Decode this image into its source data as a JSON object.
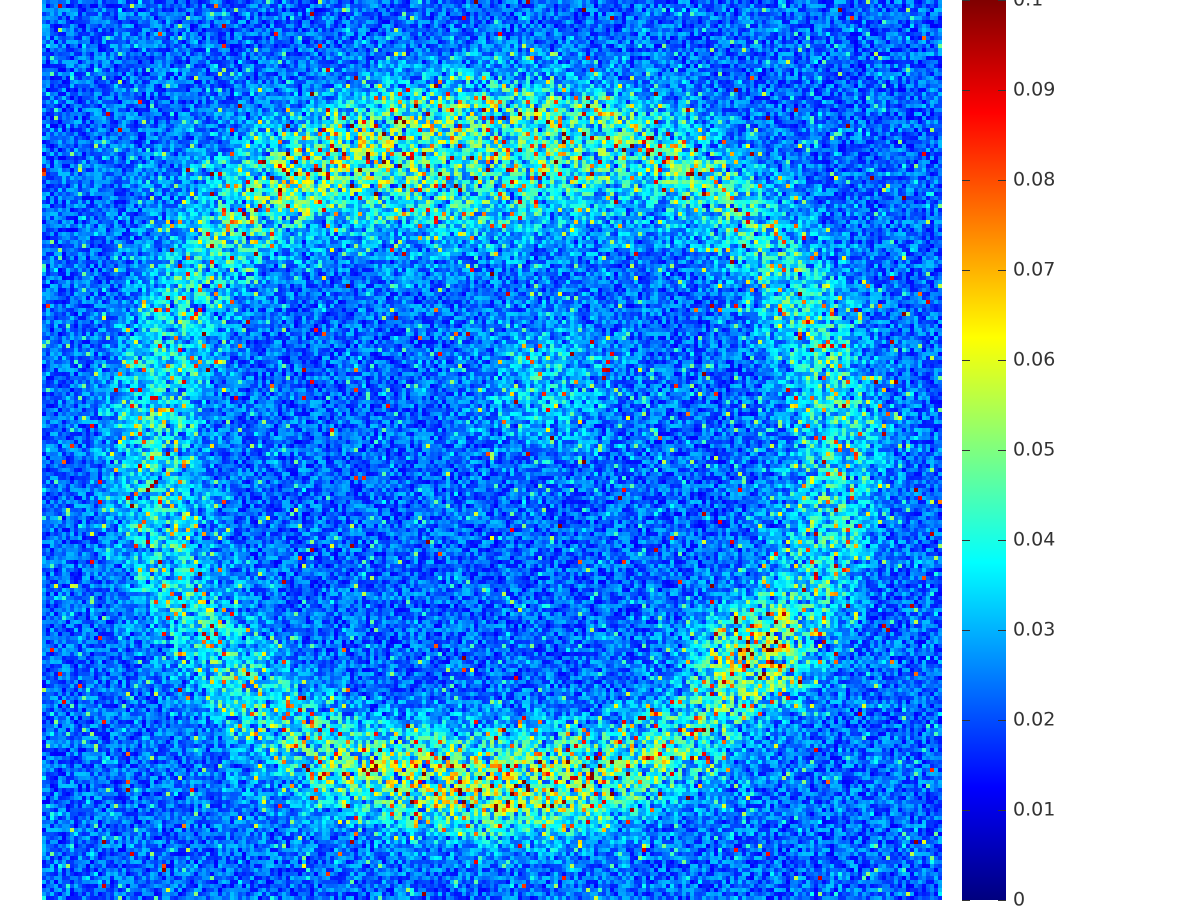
{
  "chart_data": {
    "type": "heatmap",
    "title": "",
    "xlabel": "",
    "ylabel": "",
    "grid": false,
    "colormap": "jet",
    "color_range": [
      0,
      0.1
    ],
    "grid_resolution": [
      225,
      225
    ],
    "value_distribution": {
      "background_typical": 0.02,
      "hotspot_max": 0.1,
      "high_value_regions": [
        "upper arc",
        "left arc",
        "lower arc",
        "right-center cluster",
        "lower-right cluster"
      ]
    },
    "colorbar": {
      "ticks": [
        0,
        0.01,
        0.02,
        0.03,
        0.04,
        0.05,
        0.06,
        0.07,
        0.08,
        0.09,
        0.1
      ],
      "tick_labels": [
        "0",
        "0.01",
        "0.02",
        "0.03",
        "0.04",
        "0.05",
        "0.06",
        "0.07",
        "0.08",
        "0.09",
        "0.1"
      ]
    }
  },
  "colors": {
    "jet_stops": [
      "#00007f",
      "#0000ff",
      "#007fff",
      "#00ffff",
      "#7fff7f",
      "#ffff00",
      "#ff7f00",
      "#ff0000",
      "#7f0000"
    ],
    "tick_color": "#333333"
  }
}
